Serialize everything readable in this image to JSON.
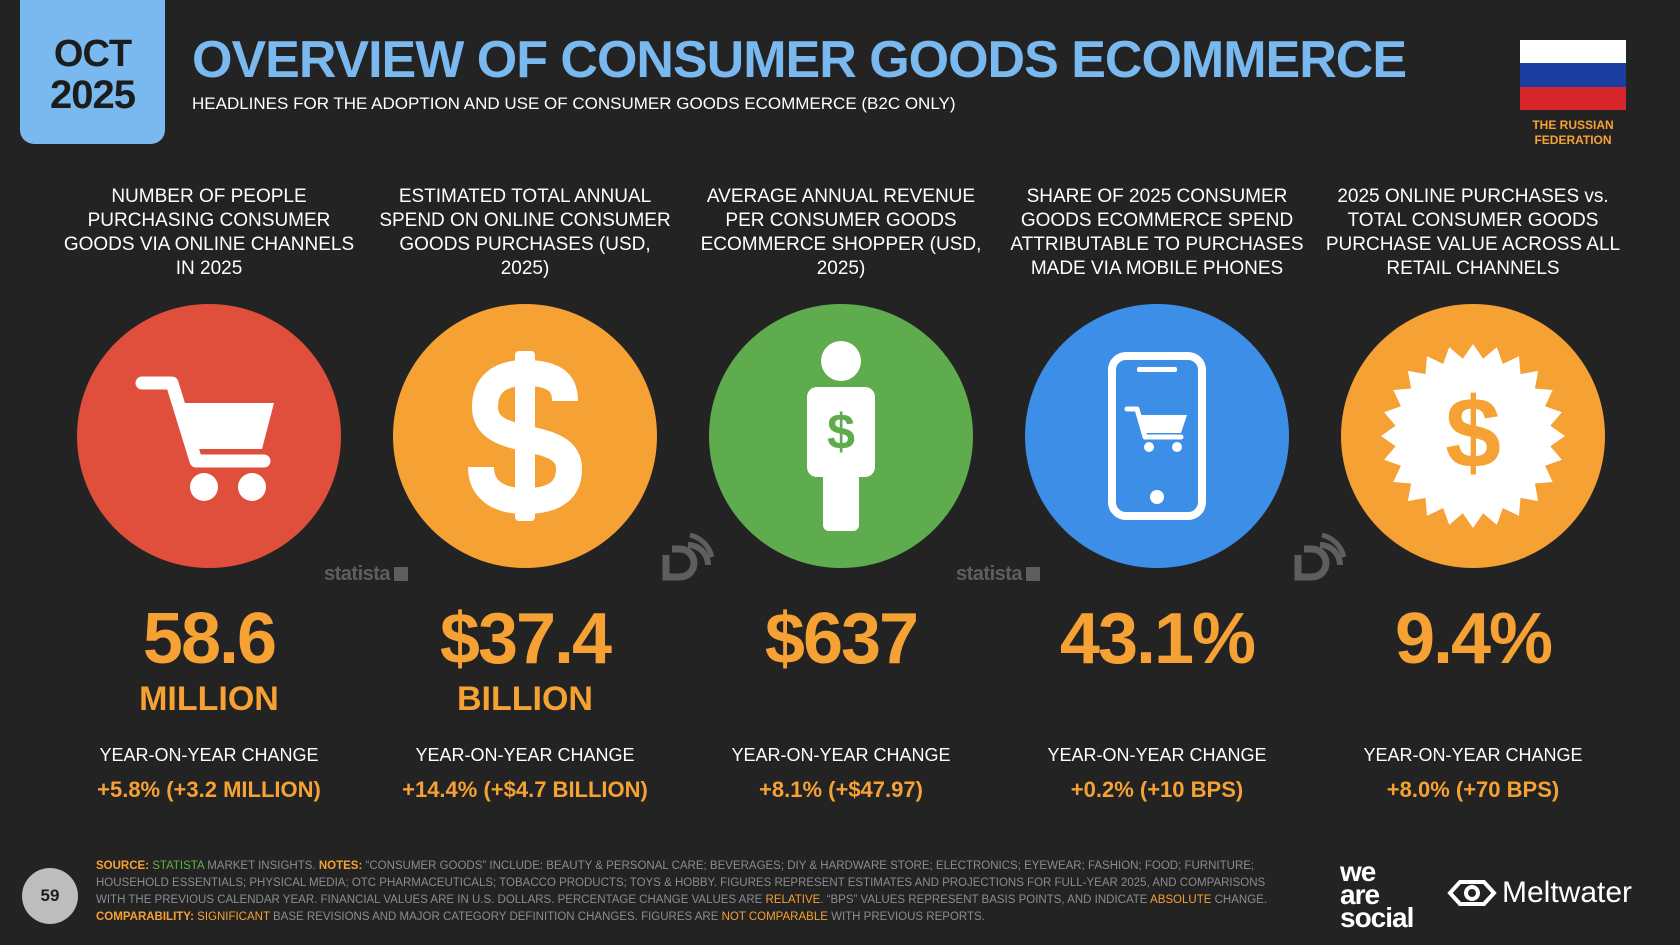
{
  "badge": {
    "month": "OCT",
    "year": "2025"
  },
  "header": {
    "title": "OVERVIEW OF CONSUMER GOODS ECOMMERCE",
    "subtitle": "HEADLINES FOR THE ADOPTION AND USE OF CONSUMER GOODS ECOMMERCE (B2C ONLY)"
  },
  "flag": {
    "label": "THE RUSSIAN FEDERATION",
    "colors": [
      "#ffffff",
      "#1b3fa0",
      "#d7262b"
    ]
  },
  "colors": {
    "accent": "#f5a133",
    "title_blue": "#7ab8f0",
    "red": "#e04e3c",
    "orange": "#f5a133",
    "green": "#5fac4e",
    "blue": "#3d8ee6"
  },
  "stats": [
    {
      "heading": "NUMBER OF PEOPLE PURCHASING CONSUMER GOODS VIA ONLINE CHANNELS IN 2025",
      "icon": "shopping-cart-icon",
      "value": "58.6",
      "unit": "MILLION",
      "yoy_label": "YEAR-ON-YEAR CHANGE",
      "yoy_value": "+5.8% (+3.2 MILLION)"
    },
    {
      "heading": "ESTIMATED TOTAL ANNUAL SPEND ON ONLINE CONSUMER GOODS PURCHASES (USD, 2025)",
      "icon": "dollar-icon",
      "value": "$37.4",
      "unit": "BILLION",
      "yoy_label": "YEAR-ON-YEAR CHANGE",
      "yoy_value": "+14.4% (+$4.7 BILLION)"
    },
    {
      "heading": "AVERAGE ANNUAL REVENUE PER CONSUMER GOODS ECOMMERCE SHOPPER (USD, 2025)",
      "icon": "shopper-icon",
      "value": "$637",
      "unit": "",
      "yoy_label": "YEAR-ON-YEAR CHANGE",
      "yoy_value": "+8.1% (+$47.97)"
    },
    {
      "heading": "SHARE OF 2025 CONSUMER GOODS ECOMMERCE SPEND ATTRIBUTABLE TO PURCHASES MADE VIA MOBILE PHONES",
      "icon": "mobile-cart-icon",
      "value": "43.1%",
      "unit": "",
      "yoy_label": "YEAR-ON-YEAR CHANGE",
      "yoy_value": "+0.2% (+10 BPS)"
    },
    {
      "heading": "2025 ONLINE PURCHASES vs. TOTAL CONSUMER GOODS PURCHASE VALUE ACROSS ALL RETAIL CHANNELS",
      "icon": "dollar-seal-icon",
      "value": "9.4%",
      "unit": "",
      "yoy_label": "YEAR-ON-YEAR CHANGE",
      "yoy_value": "+8.0% (+70 BPS)"
    }
  ],
  "watermarks": {
    "statista": "statista"
  },
  "footer": {
    "page_number": "59",
    "source_label": "SOURCE:",
    "source_name": "STATISTA",
    "source_rest": "MARKET INSIGHTS.",
    "notes_label": "NOTES:",
    "notes_text_1": "“CONSUMER GOODS” INCLUDE: BEAUTY & PERSONAL CARE; BEVERAGES; DIY & HARDWARE STORE; ELECTRONICS; EYEWEAR; FASHION; FOOD; FURNITURE; HOUSEHOLD ESSENTIALS; PHYSICAL MEDIA; OTC PHARMACEUTICALS; TOBACCO PRODUCTS; TOYS & HOBBY. FIGURES REPRESENT ESTIMATES AND PROJECTIONS FOR FULL-YEAR 2025, AND COMPARISONS WITH THE PREVIOUS CALENDAR YEAR. FINANCIAL VALUES ARE IN U.S. DOLLARS. PERCENTAGE CHANGE VALUES ARE",
    "relative": "RELATIVE",
    "notes_text_2": ". “BPS” VALUES REPRESENT BASIS POINTS, AND INDICATE",
    "absolute": "ABSOLUTE",
    "notes_text_3": "CHANGE.",
    "comparability_label": "COMPARABILITY:",
    "significant": "SIGNIFICANT",
    "comp_text_1": "BASE REVISIONS AND MAJOR CATEGORY DEFINITION CHANGES. FIGURES ARE",
    "not_comparable": "NOT COMPARABLE",
    "comp_text_2": "WITH PREVIOUS REPORTS."
  },
  "logos": {
    "we_are_social": [
      "we",
      "are",
      "social"
    ],
    "meltwater": "Meltwater"
  }
}
